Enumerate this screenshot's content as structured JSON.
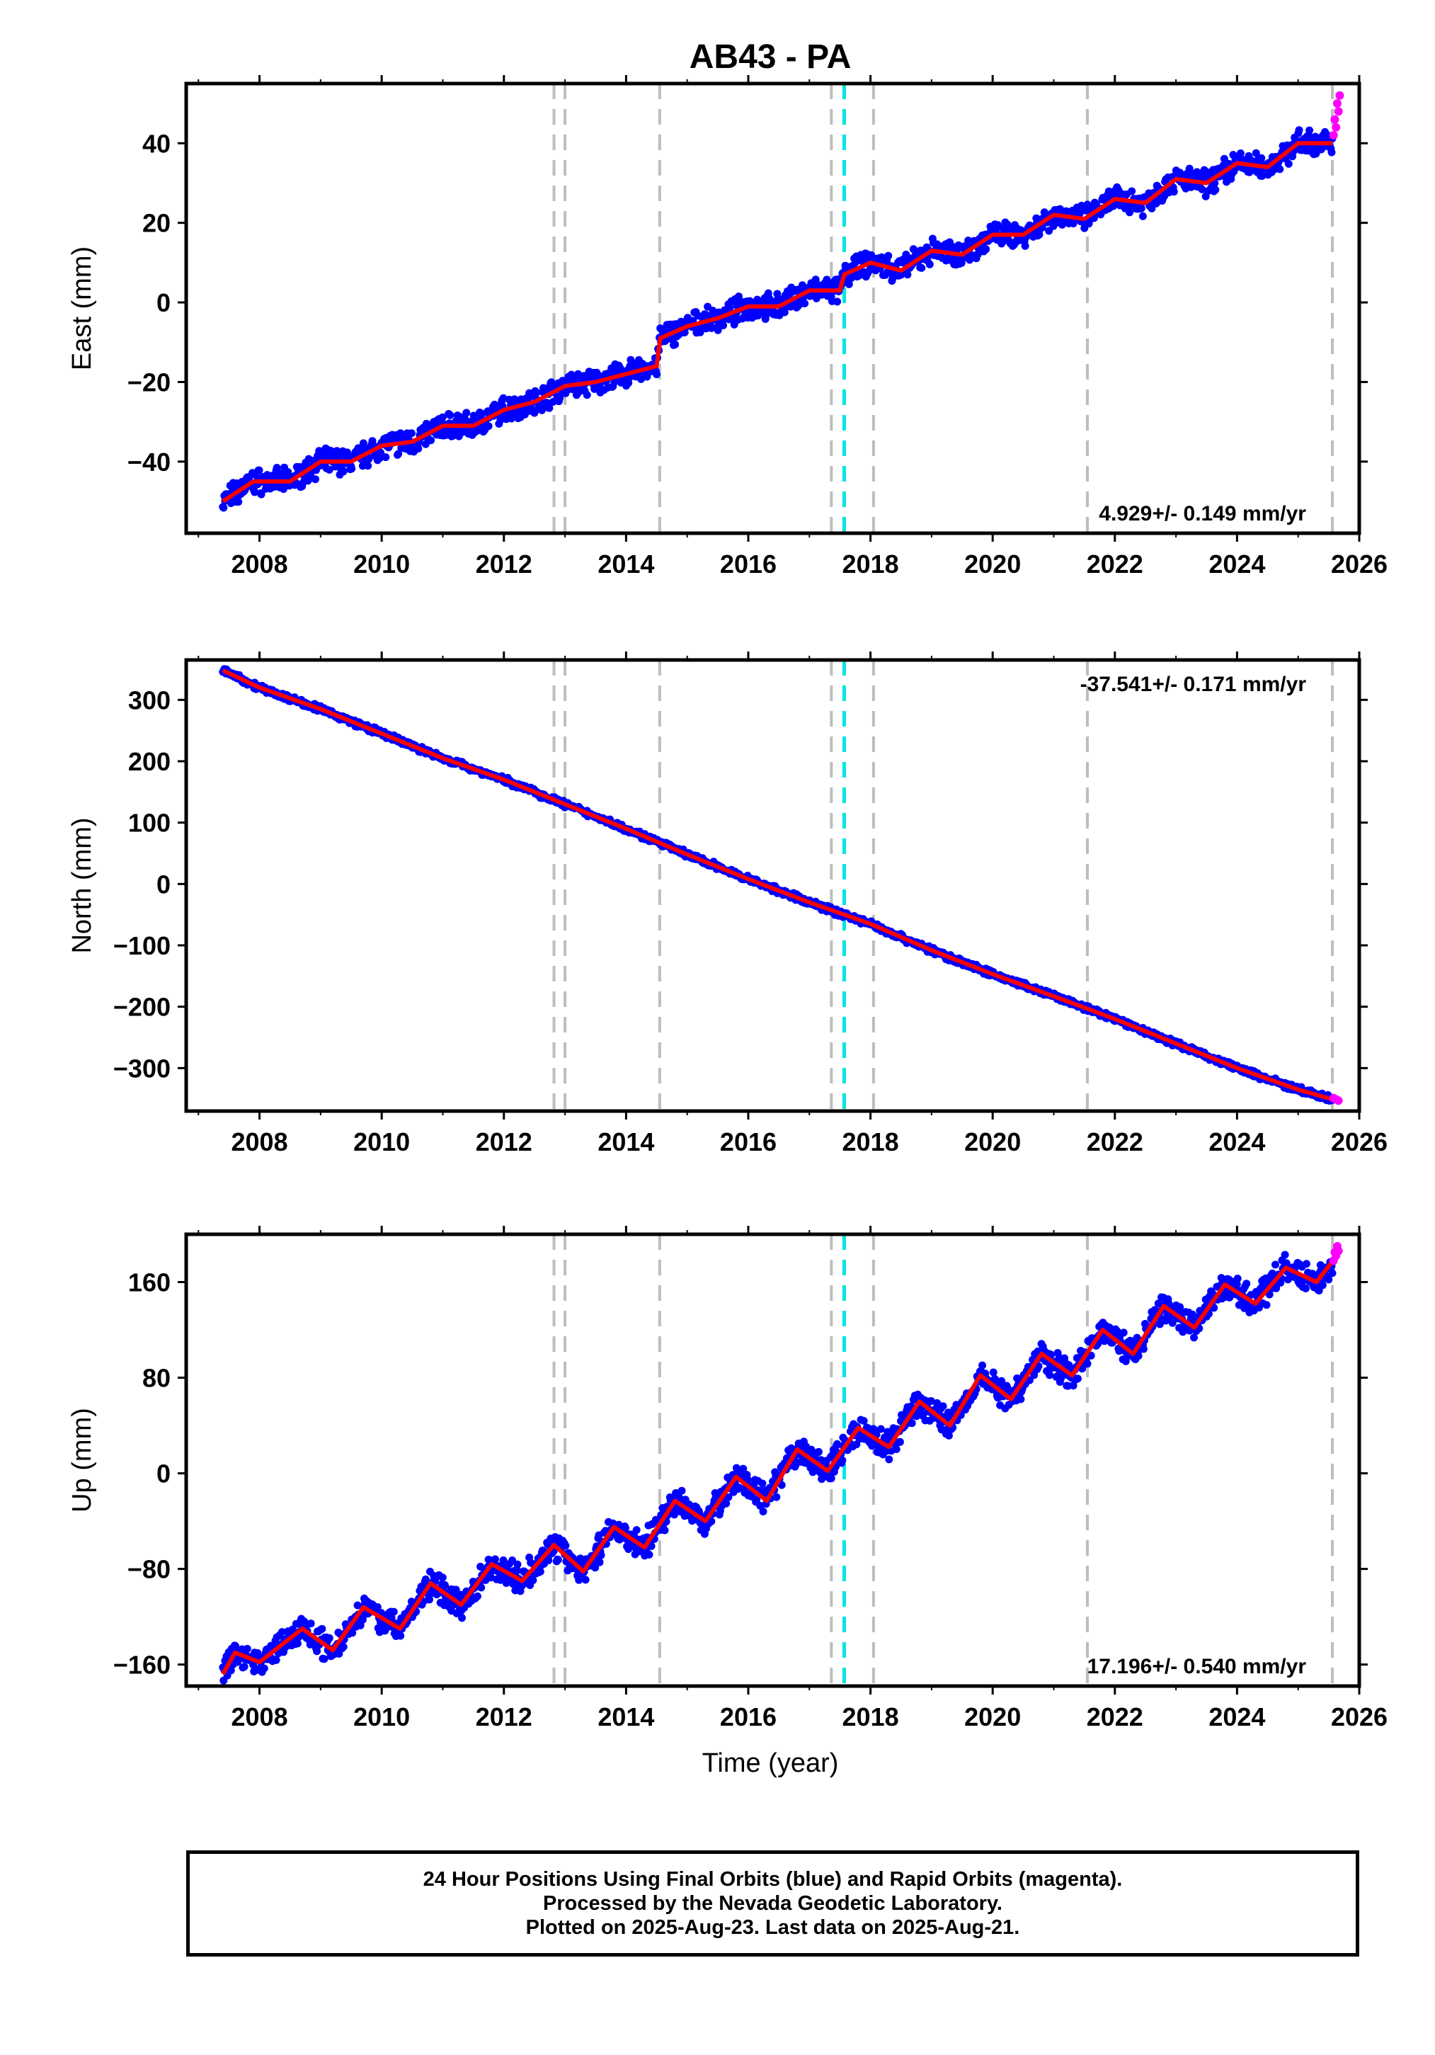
{
  "title": "AB43 - PA",
  "colors": {
    "final": "#0000ff",
    "rapid": "#ff00ff",
    "model": "#ff0000",
    "event": "#bdbdbd",
    "antenna": "#00e5e5"
  },
  "x_ticks": [
    "2008",
    "2010",
    "2012",
    "2014",
    "2016",
    "2018",
    "2020",
    "2022",
    "2024",
    "2026"
  ],
  "xlabel": "Time (year)",
  "event_lines": [
    2012.82,
    2013.0,
    2014.55,
    2017.36,
    2018.05,
    2021.55,
    2025.56
  ],
  "antenna_lines": [
    2017.57
  ],
  "footer": {
    "line1": "24 Hour Positions Using Final Orbits (blue) and Rapid Orbits (magenta).",
    "line2": "Processed by the Nevada Geodetic Laboratory.",
    "line3": "Plotted on 2025-Aug-23. Last data on 2025-Aug-21."
  },
  "chart_data": [
    {
      "type": "scatter",
      "name": "east",
      "ylabel": "East (mm)",
      "xlim": [
        2006.8,
        2026.0
      ],
      "ylim": [
        -58,
        55
      ],
      "yticks": [
        "40",
        "20",
        "0",
        "−20",
        "−40"
      ],
      "ytick_values": [
        40,
        20,
        0,
        -20,
        -40
      ],
      "rate_label": "4.929+/- 0.149 mm/yr",
      "rate_position": "bottom-right",
      "series": [
        {
          "name": "model",
          "x": [
            2007.4,
            2007.9,
            2008.5,
            2009.0,
            2009.5,
            2010.0,
            2010.5,
            2011.0,
            2011.5,
            2012.0,
            2012.5,
            2013.0,
            2013.5,
            2014.0,
            2014.5,
            2014.56,
            2015.0,
            2015.5,
            2016.0,
            2016.5,
            2017.0,
            2017.5,
            2017.57,
            2018.0,
            2018.5,
            2019.0,
            2019.5,
            2020.0,
            2020.5,
            2021.0,
            2021.5,
            2022.0,
            2022.5,
            2023.0,
            2023.5,
            2024.0,
            2024.5,
            2025.0,
            2025.56
          ],
          "values": [
            -50,
            -45,
            -45,
            -40,
            -40,
            -36,
            -35,
            -31,
            -31,
            -27,
            -25,
            -21,
            -20,
            -18,
            -16,
            -9,
            -6,
            -4,
            -1,
            -1,
            3,
            3,
            7,
            10,
            8,
            13,
            12,
            17,
            17,
            22,
            21,
            26,
            25,
            31,
            30,
            35,
            34,
            40,
            40
          ]
        },
        {
          "name": "rapid",
          "x": [
            2025.58,
            2025.6,
            2025.62,
            2025.64,
            2025.66,
            2025.68
          ],
          "values": [
            42,
            46,
            44,
            50,
            48,
            52
          ]
        }
      ]
    },
    {
      "type": "scatter",
      "name": "north",
      "ylabel": "North (mm)",
      "xlim": [
        2006.8,
        2026.0
      ],
      "ylim": [
        -370,
        365
      ],
      "yticks": [
        "300",
        "200",
        "100",
        "0",
        "−100",
        "−200",
        "−300"
      ],
      "ytick_values": [
        300,
        200,
        100,
        0,
        -100,
        -200,
        -300
      ],
      "rate_label": "-37.541+/- 0.171 mm/yr",
      "rate_position": "top-right",
      "series": [
        {
          "name": "model",
          "x": [
            2007.4,
            2008.0,
            2009.0,
            2010.0,
            2011.0,
            2012.0,
            2013.0,
            2014.0,
            2015.0,
            2016.0,
            2017.0,
            2018.0,
            2019.0,
            2020.0,
            2021.0,
            2022.0,
            2023.0,
            2024.0,
            2025.0,
            2025.6
          ],
          "values": [
            348,
            320,
            285,
            245,
            205,
            170,
            130,
            90,
            48,
            8,
            -30,
            -65,
            -108,
            -147,
            -183,
            -220,
            -260,
            -300,
            -335,
            -352
          ]
        },
        {
          "name": "rapid",
          "x": [
            2025.58,
            2025.62,
            2025.66
          ],
          "values": [
            -349,
            -351,
            -353
          ]
        }
      ]
    },
    {
      "type": "scatter",
      "name": "up",
      "ylabel": "Up (mm)",
      "xlim": [
        2006.8,
        2026.0
      ],
      "ylim": [
        -178,
        200
      ],
      "yticks": [
        "160",
        "80",
        "0",
        "−80",
        "−160"
      ],
      "ytick_values": [
        160,
        80,
        0,
        -80,
        -160
      ],
      "rate_label": "17.196+/- 0.540 mm/yr",
      "rate_position": "bottom-right",
      "series": [
        {
          "name": "model",
          "x": [
            2007.4,
            2007.6,
            2008.0,
            2008.7,
            2009.2,
            2009.7,
            2010.3,
            2010.8,
            2011.3,
            2011.8,
            2012.3,
            2012.82,
            2013.3,
            2013.8,
            2014.3,
            2014.8,
            2015.3,
            2015.8,
            2016.3,
            2016.8,
            2017.3,
            2017.8,
            2018.3,
            2018.8,
            2019.3,
            2019.8,
            2020.3,
            2020.8,
            2021.3,
            2021.8,
            2022.3,
            2022.8,
            2023.3,
            2023.8,
            2024.3,
            2024.8,
            2025.3,
            2025.6
          ],
          "values": [
            -168,
            -150,
            -158,
            -130,
            -148,
            -112,
            -130,
            -92,
            -110,
            -76,
            -90,
            -60,
            -82,
            -45,
            -62,
            -23,
            -40,
            -3,
            -23,
            20,
            2,
            38,
            22,
            60,
            40,
            82,
            62,
            100,
            82,
            120,
            100,
            140,
            122,
            158,
            142,
            172,
            160,
            180
          ]
        },
        {
          "name": "rapid",
          "x": [
            2025.58,
            2025.6,
            2025.62,
            2025.64,
            2025.66
          ],
          "values": [
            178,
            185,
            182,
            190,
            186
          ]
        }
      ]
    }
  ]
}
